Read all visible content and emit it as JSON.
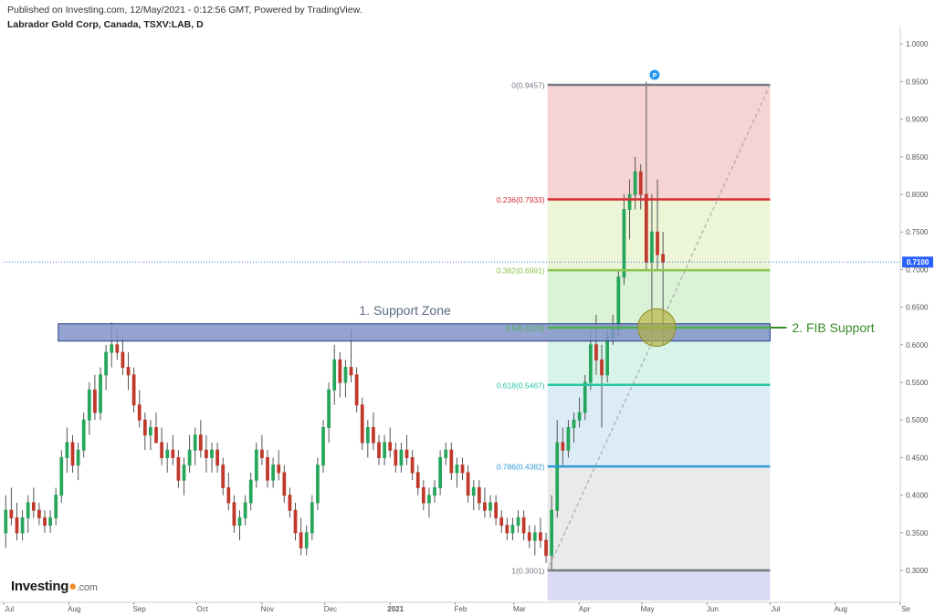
{
  "header": {
    "published": "Published on Investing.com, 12/May/2021 - 0:12:56 GMT, Powered by TradingView.",
    "instrument": "Labrador Gold Corp, Canada, TSXV:LAB, D"
  },
  "brand": {
    "name": "Investing",
    "suffix": ".com"
  },
  "chart_data": {
    "type": "candlestick",
    "x_axis": {
      "ticks": [
        "Jul",
        "Aug",
        "Sep",
        "Oct",
        "Nov",
        "Dec",
        "2021",
        "Feb",
        "Mar",
        "Apr",
        "May",
        "Jun",
        "Jul",
        "Aug",
        "Se"
      ],
      "range": [
        "2020-07",
        "2021-09"
      ]
    },
    "y_axis": {
      "range": [
        0.26,
        1.01
      ],
      "ticks": [
        "1.0000",
        "0.9500",
        "0.9000",
        "0.8500",
        "0.8000",
        "0.7500",
        "0.7000",
        "0.6500",
        "0.6000",
        "0.5500",
        "0.5000",
        "0.4500",
        "0.4000",
        "0.3500",
        "0.3000"
      ],
      "position": "right"
    },
    "last_price": {
      "value": 0.71,
      "label": "0.7100",
      "color": "#2962ff"
    },
    "fibonacci": {
      "levels": [
        {
          "ratio": 0,
          "price": 0.9457,
          "label": "0(0.9457)",
          "color": "#787b86"
        },
        {
          "ratio": 0.236,
          "price": 0.7933,
          "label": "0.236(0.7933)",
          "color": "#d32f2f"
        },
        {
          "ratio": 0.382,
          "price": 0.6991,
          "label": "0.382(0.6991)",
          "color": "#8bc34a"
        },
        {
          "ratio": 0.5,
          "price": 0.6229,
          "label": "0.5(0.6229)",
          "color": "#4caf50"
        },
        {
          "ratio": 0.618,
          "price": 0.5467,
          "label": "0.618(0.5467)",
          "color": "#26c6a2"
        },
        {
          "ratio": 0.786,
          "price": 0.4382,
          "label": "0.786(0.4382)",
          "color": "#2e9bd6"
        },
        {
          "ratio": 1,
          "price": 0.3001,
          "label": "1(0.3001)",
          "color": "#787b86"
        }
      ],
      "extension_bottom": 0.26,
      "bands": [
        {
          "from": 0.9457,
          "to": 0.7933,
          "fill": "#f4cccc"
        },
        {
          "from": 0.7933,
          "to": 0.6991,
          "fill": "#e9f3cf"
        },
        {
          "from": 0.6991,
          "to": 0.6229,
          "fill": "#d4f0cf"
        },
        {
          "from": 0.6229,
          "to": 0.5467,
          "fill": "#d1f1e4"
        },
        {
          "from": 0.5467,
          "to": 0.4382,
          "fill": "#d6e9f6"
        },
        {
          "from": 0.4382,
          "to": 0.3001,
          "fill": "#e6e6e6"
        },
        {
          "from": 0.3001,
          "to": 0.26,
          "fill": "#d3d3f2"
        }
      ],
      "start_date": "2021-03-17",
      "end_date": "2021-07-01"
    },
    "trendline": {
      "from": {
        "date": "2021-03-17",
        "price": 0.3001
      },
      "to": {
        "date": "2021-07-01",
        "price": 0.9457
      },
      "style": "dashed"
    },
    "support_zone": {
      "label": "1. Support Zone",
      "from_date": "2020-07-27",
      "to_date": "2021-07-01",
      "low": 0.605,
      "high": 0.628,
      "fill": "#8193c8",
      "border": "#2a3f8a"
    },
    "fib_support": {
      "label": "2. FIB Support",
      "color": "#3a8a2a",
      "price": 0.6229,
      "date": "2021-05-08",
      "radius_price": 0.025
    },
    "pivot_marker": {
      "label": "P",
      "date": "2021-05-07",
      "price": 0.9457
    },
    "candles": [
      [
        0.35,
        0.4,
        0.33,
        0.38
      ],
      [
        0.38,
        0.41,
        0.36,
        0.37
      ],
      [
        0.37,
        0.39,
        0.34,
        0.35
      ],
      [
        0.35,
        0.38,
        0.34,
        0.37
      ],
      [
        0.37,
        0.4,
        0.35,
        0.39
      ],
      [
        0.39,
        0.41,
        0.37,
        0.38
      ],
      [
        0.38,
        0.39,
        0.36,
        0.37
      ],
      [
        0.37,
        0.38,
        0.35,
        0.36
      ],
      [
        0.36,
        0.38,
        0.35,
        0.37
      ],
      [
        0.37,
        0.41,
        0.36,
        0.4
      ],
      [
        0.4,
        0.46,
        0.39,
        0.45
      ],
      [
        0.45,
        0.49,
        0.43,
        0.47
      ],
      [
        0.47,
        0.48,
        0.43,
        0.44
      ],
      [
        0.44,
        0.47,
        0.42,
        0.46
      ],
      [
        0.46,
        0.51,
        0.45,
        0.5
      ],
      [
        0.5,
        0.55,
        0.48,
        0.54
      ],
      [
        0.54,
        0.56,
        0.5,
        0.51
      ],
      [
        0.51,
        0.57,
        0.5,
        0.56
      ],
      [
        0.56,
        0.6,
        0.54,
        0.59
      ],
      [
        0.59,
        0.63,
        0.57,
        0.6
      ],
      [
        0.6,
        0.62,
        0.58,
        0.59
      ],
      [
        0.59,
        0.61,
        0.56,
        0.57
      ],
      [
        0.57,
        0.59,
        0.54,
        0.56
      ],
      [
        0.56,
        0.57,
        0.51,
        0.52
      ],
      [
        0.52,
        0.54,
        0.49,
        0.5
      ],
      [
        0.5,
        0.51,
        0.46,
        0.48
      ],
      [
        0.48,
        0.5,
        0.46,
        0.49
      ],
      [
        0.49,
        0.51,
        0.47,
        0.47
      ],
      [
        0.47,
        0.49,
        0.44,
        0.45
      ],
      [
        0.45,
        0.47,
        0.43,
        0.46
      ],
      [
        0.46,
        0.48,
        0.44,
        0.45
      ],
      [
        0.45,
        0.46,
        0.41,
        0.42
      ],
      [
        0.42,
        0.45,
        0.4,
        0.44
      ],
      [
        0.44,
        0.48,
        0.43,
        0.46
      ],
      [
        0.46,
        0.49,
        0.44,
        0.48
      ],
      [
        0.48,
        0.5,
        0.45,
        0.46
      ],
      [
        0.46,
        0.48,
        0.43,
        0.45
      ],
      [
        0.45,
        0.47,
        0.43,
        0.46
      ],
      [
        0.46,
        0.47,
        0.43,
        0.44
      ],
      [
        0.44,
        0.45,
        0.4,
        0.41
      ],
      [
        0.41,
        0.43,
        0.38,
        0.39
      ],
      [
        0.39,
        0.4,
        0.35,
        0.36
      ],
      [
        0.36,
        0.38,
        0.34,
        0.37
      ],
      [
        0.37,
        0.4,
        0.36,
        0.39
      ],
      [
        0.39,
        0.43,
        0.38,
        0.42
      ],
      [
        0.42,
        0.47,
        0.41,
        0.46
      ],
      [
        0.46,
        0.48,
        0.44,
        0.45
      ],
      [
        0.45,
        0.46,
        0.41,
        0.42
      ],
      [
        0.42,
        0.45,
        0.41,
        0.44
      ],
      [
        0.44,
        0.46,
        0.42,
        0.43
      ],
      [
        0.43,
        0.44,
        0.39,
        0.4
      ],
      [
        0.4,
        0.41,
        0.37,
        0.38
      ],
      [
        0.38,
        0.39,
        0.34,
        0.35
      ],
      [
        0.35,
        0.37,
        0.32,
        0.33
      ],
      [
        0.33,
        0.36,
        0.32,
        0.35
      ],
      [
        0.35,
        0.4,
        0.34,
        0.39
      ],
      [
        0.39,
        0.45,
        0.38,
        0.44
      ],
      [
        0.44,
        0.5,
        0.43,
        0.49
      ],
      [
        0.49,
        0.55,
        0.47,
        0.54
      ],
      [
        0.54,
        0.6,
        0.52,
        0.58
      ],
      [
        0.58,
        0.59,
        0.53,
        0.55
      ],
      [
        0.55,
        0.58,
        0.53,
        0.57
      ],
      [
        0.57,
        0.62,
        0.55,
        0.56
      ],
      [
        0.56,
        0.57,
        0.51,
        0.52
      ],
      [
        0.52,
        0.53,
        0.46,
        0.47
      ],
      [
        0.47,
        0.5,
        0.45,
        0.49
      ],
      [
        0.49,
        0.51,
        0.46,
        0.47
      ],
      [
        0.47,
        0.48,
        0.44,
        0.45
      ],
      [
        0.45,
        0.48,
        0.44,
        0.47
      ],
      [
        0.47,
        0.49,
        0.45,
        0.46
      ],
      [
        0.46,
        0.47,
        0.43,
        0.44
      ],
      [
        0.44,
        0.47,
        0.43,
        0.46
      ],
      [
        0.46,
        0.48,
        0.44,
        0.45
      ],
      [
        0.45,
        0.46,
        0.42,
        0.43
      ],
      [
        0.43,
        0.44,
        0.4,
        0.41
      ],
      [
        0.41,
        0.42,
        0.38,
        0.39
      ],
      [
        0.39,
        0.41,
        0.37,
        0.4
      ],
      [
        0.4,
        0.42,
        0.39,
        0.41
      ],
      [
        0.41,
        0.46,
        0.4,
        0.45
      ],
      [
        0.45,
        0.47,
        0.44,
        0.46
      ],
      [
        0.46,
        0.47,
        0.42,
        0.43
      ],
      [
        0.43,
        0.45,
        0.41,
        0.44
      ],
      [
        0.44,
        0.45,
        0.42,
        0.43
      ],
      [
        0.43,
        0.44,
        0.39,
        0.4
      ],
      [
        0.4,
        0.42,
        0.38,
        0.41
      ],
      [
        0.41,
        0.42,
        0.38,
        0.39
      ],
      [
        0.39,
        0.41,
        0.37,
        0.38
      ],
      [
        0.38,
        0.4,
        0.37,
        0.39
      ],
      [
        0.39,
        0.4,
        0.36,
        0.37
      ],
      [
        0.37,
        0.38,
        0.35,
        0.36
      ],
      [
        0.36,
        0.37,
        0.34,
        0.35
      ],
      [
        0.35,
        0.37,
        0.34,
        0.36
      ],
      [
        0.36,
        0.38,
        0.35,
        0.37
      ],
      [
        0.37,
        0.38,
        0.34,
        0.35
      ],
      [
        0.35,
        0.36,
        0.33,
        0.34
      ],
      [
        0.34,
        0.36,
        0.32,
        0.35
      ],
      [
        0.35,
        0.37,
        0.33,
        0.34
      ],
      [
        0.34,
        0.35,
        0.31,
        0.32
      ],
      [
        0.32,
        0.4,
        0.3,
        0.38
      ],
      [
        0.38,
        0.5,
        0.37,
        0.47
      ],
      [
        0.47,
        0.49,
        0.44,
        0.46
      ],
      [
        0.46,
        0.5,
        0.45,
        0.49
      ],
      [
        0.49,
        0.51,
        0.47,
        0.5
      ],
      [
        0.5,
        0.53,
        0.49,
        0.51
      ],
      [
        0.51,
        0.56,
        0.5,
        0.55
      ],
      [
        0.55,
        0.62,
        0.54,
        0.6
      ],
      [
        0.6,
        0.64,
        0.56,
        0.58
      ],
      [
        0.58,
        0.6,
        0.49,
        0.56
      ],
      [
        0.56,
        0.62,
        0.55,
        0.61
      ],
      [
        0.61,
        0.64,
        0.6,
        0.62
      ],
      [
        0.62,
        0.7,
        0.61,
        0.69
      ],
      [
        0.69,
        0.8,
        0.68,
        0.78
      ],
      [
        0.78,
        0.82,
        0.74,
        0.8
      ],
      [
        0.8,
        0.85,
        0.78,
        0.83
      ],
      [
        0.83,
        0.84,
        0.78,
        0.8
      ],
      [
        0.8,
        0.95,
        0.7,
        0.71
      ],
      [
        0.71,
        0.8,
        0.6,
        0.75
      ],
      [
        0.75,
        0.82,
        0.7,
        0.72
      ],
      [
        0.72,
        0.75,
        0.6,
        0.71
      ]
    ]
  }
}
